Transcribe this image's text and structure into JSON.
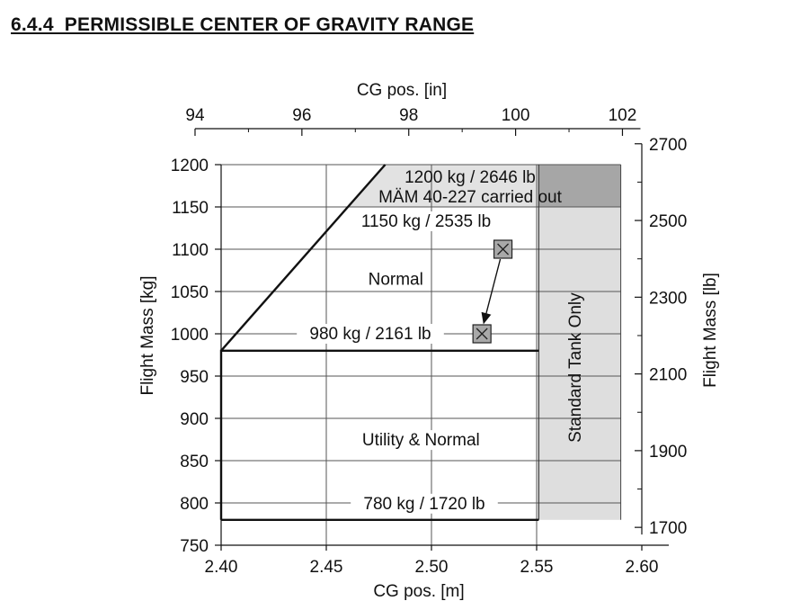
{
  "heading": "6.4.4  PERMISSIBLE CENTER OF GRAVITY RANGE",
  "chart_data": {
    "type": "area",
    "xlabel_top": "CG pos. [in]",
    "xlabel_bottom": "CG pos. [m]",
    "ylabel_left": "Flight Mass [kg]",
    "ylabel_right": "Flight Mass [lb]",
    "x_m": {
      "lim": [
        2.4,
        2.6
      ],
      "ticks": [
        2.4,
        2.45,
        2.5,
        2.55,
        2.6
      ],
      "tick_labels": [
        "2.40",
        "2.45",
        "2.50",
        "2.55",
        "2.60"
      ]
    },
    "x_in": {
      "ticks": [
        94,
        96,
        98,
        100,
        102
      ],
      "tick_labels": [
        "94",
        "96",
        "98",
        "100",
        "102"
      ]
    },
    "y_kg": {
      "lim": [
        750,
        1200
      ],
      "ticks": [
        750,
        800,
        850,
        900,
        950,
        1000,
        1050,
        1100,
        1150,
        1200
      ],
      "tick_labels": [
        "750",
        "800",
        "850",
        "900",
        "950",
        "1000",
        "1050",
        "1100",
        "1150",
        "1200"
      ]
    },
    "y_lb": {
      "ticks": [
        1700,
        1900,
        2100,
        2300,
        2500,
        2700
      ],
      "tick_labels": [
        "1700",
        "1900",
        "2100",
        "2300",
        "2500",
        "2700"
      ]
    },
    "regions": [
      {
        "label": "Utility & Normal",
        "label_x": 2.495,
        "label_y": 868
      },
      {
        "label": "Normal",
        "label_x": 2.483,
        "label_y": 1058
      },
      {
        "label": "Standard Tank Only",
        "label_x": 2.568,
        "label_y": 960
      }
    ],
    "envelope": [
      [
        2.4,
        780
      ],
      [
        2.4,
        980
      ],
      [
        2.478,
        1200
      ],
      [
        2.59,
        1200
      ],
      [
        2.59,
        780
      ]
    ],
    "standard_tank_region": [
      [
        2.551,
        780
      ],
      [
        2.59,
        1200
      ]
    ],
    "mass_limits": [
      {
        "label": "780 kg / 1720 lb",
        "mass": 780
      },
      {
        "label": "980 kg / 2161 lb",
        "mass": 980
      },
      {
        "label": "1150 kg / 2535 lb",
        "mass": 1150
      },
      {
        "label": "1200 kg / 2646 lb",
        "mass": 1200
      }
    ],
    "annotation": "MÄM 40-227 carried out",
    "example_points": [
      {
        "x": 2.534,
        "y": 1100
      },
      {
        "x": 2.524,
        "y": 1000
      }
    ],
    "grid": true
  }
}
